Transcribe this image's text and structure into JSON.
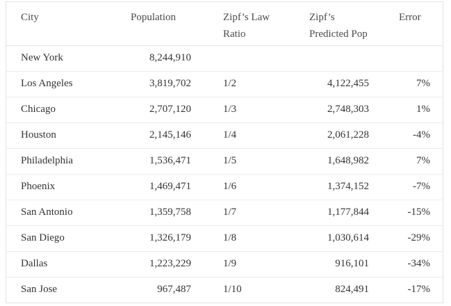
{
  "table": {
    "headers": {
      "city": "City",
      "population": "Population",
      "ratio_line1": "Zipf’s Law",
      "ratio_line2": "Ratio",
      "predicted_line1": "Zipf’s",
      "predicted_line2": "Predicted Pop",
      "error": "Error"
    },
    "rows": [
      {
        "city": "New York",
        "population": "8,244,910",
        "ratio": "",
        "predicted": "",
        "error": ""
      },
      {
        "city": "Los Angeles",
        "population": "3,819,702",
        "ratio": "1/2",
        "predicted": "4,122,455",
        "error": "7%"
      },
      {
        "city": "Chicago",
        "population": "2,707,120",
        "ratio": "1/3",
        "predicted": "2,748,303",
        "error": "1%"
      },
      {
        "city": "Houston",
        "population": "2,145,146",
        "ratio": "1/4",
        "predicted": "2,061,228",
        "error": "-4%"
      },
      {
        "city": "Philadelphia",
        "population": "1,536,471",
        "ratio": "1/5",
        "predicted": "1,648,982",
        "error": "7%"
      },
      {
        "city": "Phoenix",
        "population": "1,469,471",
        "ratio": "1/6",
        "predicted": "1,374,152",
        "error": "-7%"
      },
      {
        "city": "San Antonio",
        "population": "1,359,758",
        "ratio": "1/7",
        "predicted": "1,177,844",
        "error": "-15%"
      },
      {
        "city": "San Diego",
        "population": "1,326,179",
        "ratio": "1/8",
        "predicted": "1,030,614",
        "error": "-29%"
      },
      {
        "city": "Dallas",
        "population": "1,223,229",
        "ratio": "1/9",
        "predicted": "916,101",
        "error": "-34%"
      },
      {
        "city": "San Jose",
        "population": "967,487",
        "ratio": "1/10",
        "predicted": "824,491",
        "error": "-17%"
      }
    ]
  }
}
